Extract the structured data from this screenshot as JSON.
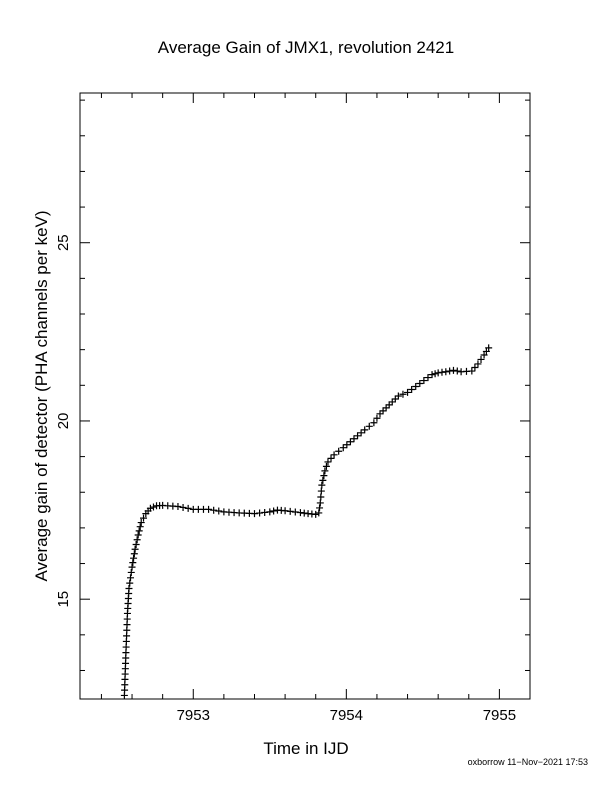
{
  "footer": "oxborrow 11−Nov−2021 17:53",
  "chart_data": {
    "type": "scatter",
    "title": "Average Gain of JMX1, revolution 2421",
    "xlabel": "Time in IJD",
    "ylabel": "Average gain of detector (PHA channels per keV)",
    "xlim": [
      7952.26,
      7955.2
    ],
    "ylim": [
      12.2,
      29.2
    ],
    "xticks": [
      7953,
      7954,
      7955
    ],
    "xtick_labels": [
      "7953",
      "7954",
      "7955"
    ],
    "yticks": [
      15,
      20,
      25
    ],
    "ytick_labels": [
      "15",
      "20",
      "25"
    ],
    "grid": false,
    "marker": "plus",
    "color": "#000000",
    "curve": [
      [
        7952.55,
        12.3
      ],
      [
        7952.56,
        13.5
      ],
      [
        7952.57,
        14.6
      ],
      [
        7952.58,
        15.3
      ],
      [
        7952.6,
        15.9
      ],
      [
        7952.62,
        16.4
      ],
      [
        7952.64,
        16.8
      ],
      [
        7952.66,
        17.15
      ],
      [
        7952.69,
        17.4
      ],
      [
        7952.72,
        17.55
      ],
      [
        7952.76,
        17.62
      ],
      [
        7952.8,
        17.63
      ],
      [
        7952.9,
        17.6
      ],
      [
        7953.0,
        17.52
      ],
      [
        7953.1,
        17.52
      ],
      [
        7953.2,
        17.45
      ],
      [
        7953.3,
        17.42
      ],
      [
        7953.4,
        17.4
      ],
      [
        7953.5,
        17.45
      ],
      [
        7953.55,
        17.5
      ],
      [
        7953.6,
        17.48
      ],
      [
        7953.7,
        17.43
      ],
      [
        7953.75,
        17.4
      ],
      [
        7953.8,
        17.38
      ],
      [
        7953.82,
        17.42
      ],
      [
        7953.83,
        17.7
      ],
      [
        7953.84,
        18.2
      ],
      [
        7953.86,
        18.6
      ],
      [
        7953.88,
        18.85
      ],
      [
        7953.92,
        19.05
      ],
      [
        7953.98,
        19.25
      ],
      [
        7954.05,
        19.5
      ],
      [
        7954.12,
        19.75
      ],
      [
        7954.18,
        19.95
      ],
      [
        7954.22,
        20.2
      ],
      [
        7954.28,
        20.45
      ],
      [
        7954.34,
        20.7
      ],
      [
        7954.4,
        20.8
      ],
      [
        7954.48,
        21.05
      ],
      [
        7954.56,
        21.3
      ],
      [
        7954.6,
        21.35
      ],
      [
        7954.65,
        21.38
      ],
      [
        7954.7,
        21.42
      ],
      [
        7954.75,
        21.38
      ],
      [
        7954.82,
        21.4
      ],
      [
        7954.86,
        21.6
      ],
      [
        7954.9,
        21.85
      ],
      [
        7954.93,
        22.05
      ]
    ]
  }
}
